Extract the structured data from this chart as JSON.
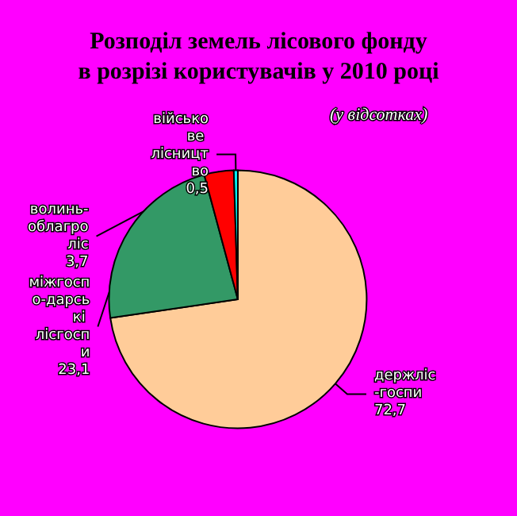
{
  "chart_data": {
    "type": "pie",
    "title": "Розподіл земель лісового фонду\nв розрізі користувачів у 2010 році",
    "subtitle": "(у відсотках)",
    "categories": [
      "держліс-госпи",
      "міжгоспо-дарські лісгоспи",
      "волинь-облагроліс",
      "військове лісництво"
    ],
    "values": [
      72.7,
      23.1,
      3.7,
      0.5
    ],
    "value_labels": [
      "72,7",
      "23,1",
      "3,7",
      "0,5"
    ],
    "colors": [
      "#ffcc99",
      "#339966",
      "#ff0000",
      "#00ffff"
    ],
    "legend": false
  }
}
